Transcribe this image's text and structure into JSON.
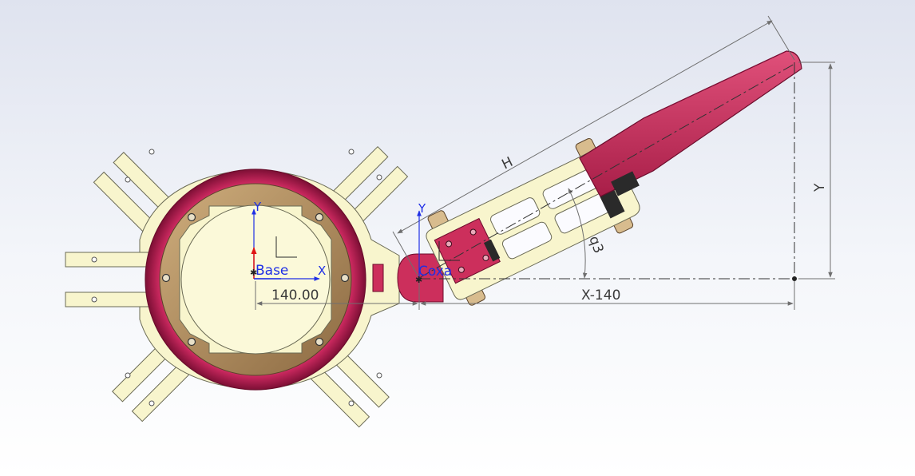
{
  "colors": {
    "background_top": "#dde2ee",
    "background_bottom": "#ffffff",
    "plate": "#f8f5cd",
    "plate_stroke": "#6a6a55",
    "ring": "#c9285e",
    "ring_dark": "#7d0f35",
    "bronze": "#a88256",
    "bronze_light": "#d8bc8e",
    "femur": "#cc2f5c",
    "servo_dark": "#2a2a2a",
    "dimension": "#6f6f6f",
    "axis_blue": "#1f2fe6",
    "axis_red": "#e01414"
  },
  "frames": {
    "base": {
      "label": "Base",
      "x_axis": "X",
      "y_axis": "Y"
    },
    "coxa": {
      "label": "Coxa",
      "y_axis": "Y"
    }
  },
  "dimensions": {
    "base_to_coxa": "140.00",
    "horizontal": "X-140",
    "vertical": "Y",
    "length": "H",
    "angle": "q3"
  }
}
